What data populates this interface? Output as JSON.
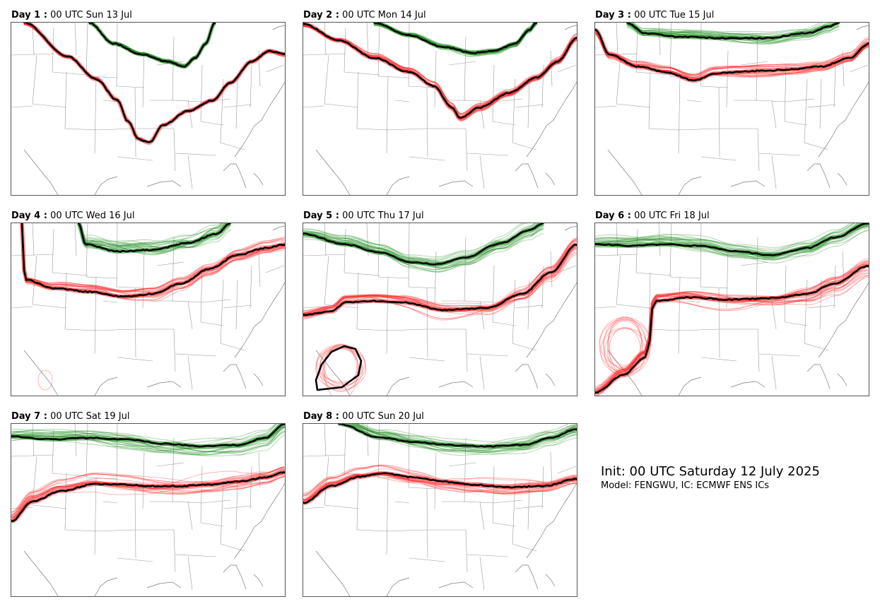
{
  "panels": [
    {
      "day_label": "Day 1 :",
      "time": "00 UTC Sun 13 Jul"
    },
    {
      "day_label": "Day 2 :",
      "time": "00 UTC Mon 14 Jul"
    },
    {
      "day_label": "Day 3 :",
      "time": "00 UTC Tue 15 Jul"
    },
    {
      "day_label": "Day 4 :",
      "time": "00 UTC Wed 16 Jul"
    },
    {
      "day_label": "Day 5 :",
      "time": "00 UTC Thu 17 Jul"
    },
    {
      "day_label": "Day 6 :",
      "time": "00 UTC Fri 18 Jul"
    },
    {
      "day_label": "Day 7 :",
      "time": "00 UTC Sat 19 Jul"
    },
    {
      "day_label": "Day 8 :",
      "time": "00 UTC Sun 20 Jul"
    }
  ],
  "info": {
    "init": "Init: 00 UTC Saturday 12 July 2025",
    "model": "Model: FENGWU, IC: ECMWF ENS ICs"
  },
  "colors": {
    "red_contour": "#ff2a2a",
    "green_contour": "#1f8c1f",
    "ensemble_mean": "#000000",
    "border": "#555555"
  }
}
